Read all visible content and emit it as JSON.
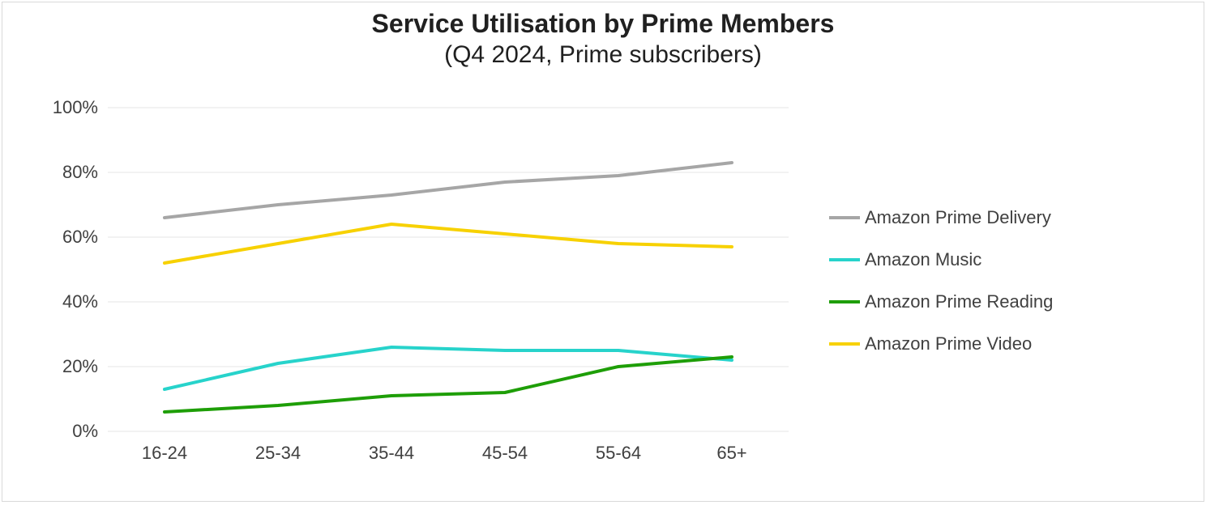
{
  "chart": {
    "type": "line",
    "title_main": "Service Utilisation by Prime Members",
    "title_sub": "(Q4 2024, Prime subscribers)",
    "title_fontsize": 32,
    "subtitle_fontsize": 30,
    "title_color": "#202020",
    "background_color": "#ffffff",
    "border_color": "#d9d9d9",
    "grid_color": "#e6e6e6",
    "axis_text_color": "#404040",
    "axis_fontsize": 22,
    "legend_fontsize": 22,
    "line_width": 4,
    "x": {
      "categories": [
        "16-24",
        "25-34",
        "35-44",
        "45-54",
        "55-64",
        "65+"
      ]
    },
    "y": {
      "min": 0,
      "max": 100,
      "tick_step": 20,
      "ticks": [
        0,
        20,
        40,
        60,
        80,
        100
      ],
      "tick_labels": [
        "0%",
        "20%",
        "40%",
        "60%",
        "80%",
        "100%"
      ],
      "tick_label_align": "right"
    },
    "series": [
      {
        "name": "Amazon Prime Delivery",
        "color": "#a6a6a6",
        "values": [
          66,
          70,
          73,
          77,
          79,
          83
        ]
      },
      {
        "name": "Amazon Music",
        "color": "#27d3cb",
        "values": [
          13,
          21,
          26,
          25,
          25,
          22
        ]
      },
      {
        "name": "Amazon Prime Reading",
        "color": "#1e9e07",
        "values": [
          6,
          8,
          11,
          12,
          20,
          23
        ]
      },
      {
        "name": "Amazon Prime Video",
        "color": "#f7d100",
        "values": [
          52,
          58,
          64,
          61,
          58,
          57
        ]
      }
    ],
    "legend_position": "right",
    "aspect_width": 1488,
    "aspect_height": 622
  }
}
